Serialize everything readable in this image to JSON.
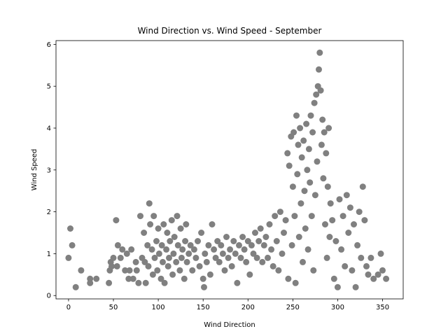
{
  "chart_data": {
    "type": "scatter",
    "title": "Wind Direction vs. Wind Speed - September",
    "xlabel": "Wind Direction",
    "ylabel": "Wind Speed",
    "xlim": [
      -14,
      373
    ],
    "ylim": [
      -0.08,
      6.09
    ],
    "xticks": [
      0,
      50,
      100,
      150,
      200,
      250,
      300,
      350
    ],
    "yticks": [
      0,
      1,
      2,
      3,
      4,
      5,
      6
    ],
    "grid": false,
    "legend": "none",
    "point_color": "#808080",
    "points": [
      [
        0,
        0.9
      ],
      [
        2,
        1.6
      ],
      [
        4,
        1.2
      ],
      [
        8,
        0.2
      ],
      [
        14,
        0.6
      ],
      [
        24,
        0.4
      ],
      [
        24,
        0.3
      ],
      [
        31,
        0.4
      ],
      [
        45,
        0.3
      ],
      [
        46,
        0.6
      ],
      [
        47,
        0.8
      ],
      [
        48,
        0.7
      ],
      [
        50,
        0.9
      ],
      [
        53,
        1.8
      ],
      [
        54,
        0.7
      ],
      [
        55,
        1.2
      ],
      [
        58,
        0.9
      ],
      [
        60,
        1.1
      ],
      [
        63,
        0.6
      ],
      [
        65,
        1.0
      ],
      [
        67,
        0.4
      ],
      [
        68,
        0.6
      ],
      [
        70,
        1.1
      ],
      [
        72,
        0.4
      ],
      [
        75,
        0.8
      ],
      [
        76,
        0.6
      ],
      [
        78,
        0.3
      ],
      [
        80,
        1.9
      ],
      [
        82,
        0.9
      ],
      [
        84,
        1.5
      ],
      [
        85,
        0.8
      ],
      [
        86,
        0.3
      ],
      [
        88,
        1.2
      ],
      [
        89,
        0.7
      ],
      [
        90,
        2.2
      ],
      [
        91,
        1.7
      ],
      [
        93,
        1.1
      ],
      [
        94,
        0.5
      ],
      [
        95,
        1.9
      ],
      [
        96,
        0.9
      ],
      [
        98,
        1.3
      ],
      [
        99,
        0.6
      ],
      [
        100,
        1.6
      ],
      [
        101,
        1.0
      ],
      [
        103,
        0.4
      ],
      [
        104,
        1.2
      ],
      [
        105,
        0.8
      ],
      [
        106,
        1.7
      ],
      [
        107,
        0.3
      ],
      [
        109,
        1.1
      ],
      [
        110,
        1.5
      ],
      [
        111,
        0.7
      ],
      [
        112,
        0.9
      ],
      [
        113,
        1.3
      ],
      [
        115,
        1.8
      ],
      [
        116,
        0.5
      ],
      [
        117,
        1.0
      ],
      [
        118,
        1.4
      ],
      [
        120,
        0.8
      ],
      [
        121,
        1.9
      ],
      [
        122,
        1.2
      ],
      [
        124,
        0.6
      ],
      [
        125,
        1.6
      ],
      [
        126,
        0.9
      ],
      [
        127,
        1.1
      ],
      [
        129,
        0.4
      ],
      [
        130,
        1.3
      ],
      [
        131,
        1.7
      ],
      [
        132,
        0.8
      ],
      [
        134,
        1.0
      ],
      [
        136,
        1.2
      ],
      [
        138,
        0.6
      ],
      [
        140,
        1.1
      ],
      [
        142,
        0.9
      ],
      [
        144,
        1.3
      ],
      [
        146,
        0.7
      ],
      [
        148,
        1.5
      ],
      [
        150,
        0.4
      ],
      [
        151,
        0.2
      ],
      [
        152,
        1.0
      ],
      [
        154,
        0.8
      ],
      [
        156,
        1.2
      ],
      [
        158,
        0.5
      ],
      [
        160,
        1.7
      ],
      [
        162,
        1.1
      ],
      [
        164,
        0.9
      ],
      [
        166,
        1.3
      ],
      [
        168,
        0.8
      ],
      [
        170,
        1.2
      ],
      [
        172,
        1.0
      ],
      [
        174,
        0.6
      ],
      [
        176,
        1.4
      ],
      [
        178,
        0.9
      ],
      [
        180,
        1.1
      ],
      [
        182,
        0.7
      ],
      [
        184,
        1.3
      ],
      [
        186,
        1.0
      ],
      [
        188,
        0.3
      ],
      [
        190,
        1.2
      ],
      [
        192,
        0.9
      ],
      [
        194,
        1.4
      ],
      [
        196,
        1.1
      ],
      [
        198,
        0.8
      ],
      [
        200,
        1.3
      ],
      [
        202,
        0.5
      ],
      [
        204,
        1.2
      ],
      [
        206,
        1.0
      ],
      [
        208,
        1.5
      ],
      [
        210,
        0.9
      ],
      [
        212,
        1.3
      ],
      [
        214,
        1.6
      ],
      [
        216,
        0.8
      ],
      [
        218,
        1.2
      ],
      [
        220,
        1.4
      ],
      [
        222,
        0.9
      ],
      [
        224,
        1.7
      ],
      [
        226,
        1.1
      ],
      [
        228,
        0.7
      ],
      [
        230,
        1.9
      ],
      [
        232,
        1.3
      ],
      [
        234,
        0.6
      ],
      [
        236,
        2.0
      ],
      [
        238,
        1.0
      ],
      [
        240,
        1.5
      ],
      [
        242,
        1.8
      ],
      [
        244,
        3.4
      ],
      [
        245,
        0.4
      ],
      [
        246,
        3.1
      ],
      [
        248,
        3.8
      ],
      [
        249,
        1.2
      ],
      [
        250,
        2.6
      ],
      [
        251,
        3.9
      ],
      [
        252,
        1.9
      ],
      [
        253,
        0.3
      ],
      [
        254,
        4.3
      ],
      [
        255,
        2.9
      ],
      [
        256,
        3.6
      ],
      [
        257,
        1.4
      ],
      [
        258,
        4.0
      ],
      [
        259,
        2.2
      ],
      [
        260,
        3.3
      ],
      [
        261,
        0.8
      ],
      [
        262,
        3.7
      ],
      [
        263,
        2.5
      ],
      [
        264,
        1.6
      ],
      [
        265,
        4.1
      ],
      [
        266,
        3.0
      ],
      [
        267,
        1.1
      ],
      [
        268,
        3.5
      ],
      [
        269,
        2.7
      ],
      [
        270,
        4.3
      ],
      [
        271,
        1.9
      ],
      [
        272,
        3.9
      ],
      [
        273,
        0.6
      ],
      [
        274,
        4.6
      ],
      [
        275,
        2.4
      ],
      [
        276,
        4.8
      ],
      [
        277,
        3.2
      ],
      [
        278,
        5.0
      ],
      [
        279,
        5.4
      ],
      [
        280,
        5.8
      ],
      [
        281,
        4.9
      ],
      [
        282,
        3.6
      ],
      [
        283,
        4.2
      ],
      [
        284,
        2.8
      ],
      [
        285,
        3.9
      ],
      [
        286,
        1.7
      ],
      [
        287,
        3.4
      ],
      [
        288,
        0.9
      ],
      [
        289,
        2.6
      ],
      [
        290,
        4.0
      ],
      [
        291,
        1.4
      ],
      [
        292,
        2.2
      ],
      [
        294,
        1.8
      ],
      [
        296,
        0.4
      ],
      [
        298,
        1.3
      ],
      [
        300,
        0.2
      ],
      [
        302,
        2.3
      ],
      [
        304,
        1.1
      ],
      [
        306,
        1.9
      ],
      [
        308,
        0.7
      ],
      [
        310,
        2.4
      ],
      [
        312,
        1.5
      ],
      [
        314,
        2.1
      ],
      [
        316,
        0.6
      ],
      [
        318,
        1.7
      ],
      [
        320,
        0.2
      ],
      [
        322,
        1.2
      ],
      [
        324,
        2.0
      ],
      [
        326,
        0.9
      ],
      [
        328,
        2.6
      ],
      [
        330,
        1.8
      ],
      [
        332,
        0.7
      ],
      [
        334,
        0.5
      ],
      [
        337,
        0.9
      ],
      [
        340,
        0.4
      ],
      [
        345,
        0.5
      ],
      [
        348,
        1.0
      ],
      [
        350,
        0.6
      ],
      [
        354,
        0.4
      ]
    ]
  }
}
